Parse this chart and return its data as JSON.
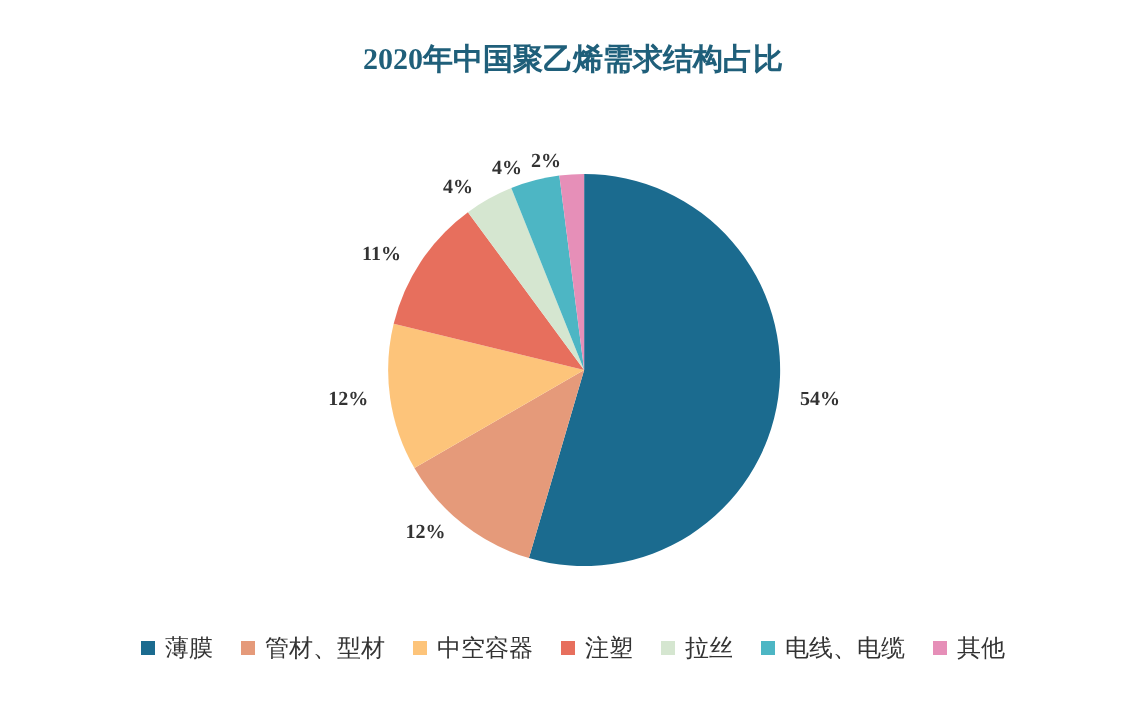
{
  "chart_data": {
    "type": "pie",
    "title": "2020年中国聚乙烯需求结构占比",
    "categories": [
      "薄膜",
      "管材、型材",
      "中空容器",
      "注塑",
      "拉丝",
      "电线、电缆",
      "其他"
    ],
    "values": [
      54,
      12,
      12,
      11,
      4,
      4,
      2
    ],
    "colors": [
      "#1b6b8f",
      "#e59a7a",
      "#fdc47a",
      "#e76f5d",
      "#d5e6d0",
      "#4db6c4",
      "#e68fb8"
    ],
    "value_labels": [
      "54%",
      "12%",
      "12%",
      "11%",
      "4%",
      "4%",
      "2%"
    ],
    "legend": "bottom"
  }
}
